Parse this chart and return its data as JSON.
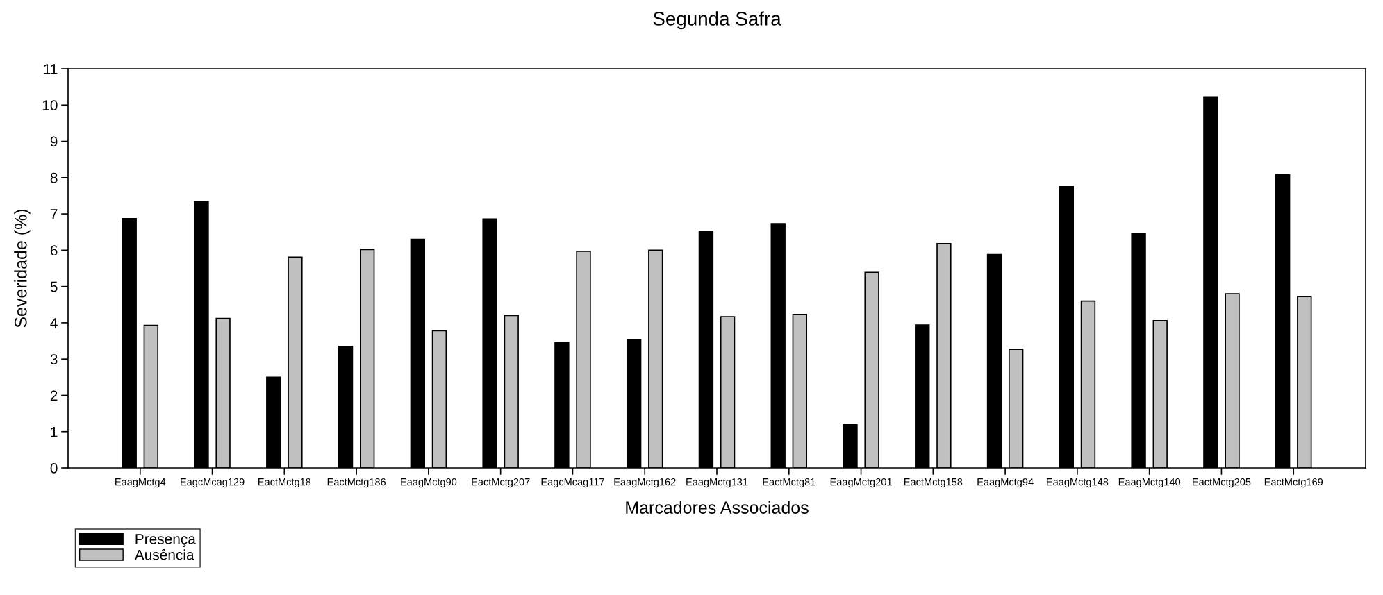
{
  "chart_data": {
    "type": "bar",
    "title": "Segunda Safra",
    "xlabel": "Marcadores Associados",
    "ylabel": "Severidade (%)",
    "categories": [
      "EaagMctg4",
      "EagcMcag129",
      "EactMctg18",
      "EactMctg186",
      "EaagMctg90",
      "EactMctg207",
      "EagcMcag117",
      "EaagMctg162",
      "EaagMctg131",
      "EactMctg81",
      "EaagMctg201",
      "EactMctg158",
      "EaagMctg94",
      "EaagMctg148",
      "EaagMctg140",
      "EactMctg205",
      "EactMctg169"
    ],
    "series": [
      {
        "name": "Presença",
        "color": "#000000",
        "values": [
          6.87,
          7.34,
          2.5,
          3.35,
          6.3,
          6.86,
          3.45,
          3.54,
          6.52,
          6.73,
          1.19,
          3.94,
          5.88,
          7.75,
          6.45,
          10.23,
          8.08
        ]
      },
      {
        "name": "Ausência",
        "color": "#c0c0c0",
        "values": [
          3.93,
          4.12,
          5.81,
          6.02,
          3.78,
          4.2,
          5.97,
          6.0,
          4.17,
          4.23,
          5.39,
          6.18,
          3.27,
          4.6,
          4.06,
          4.8,
          4.72
        ]
      }
    ],
    "ylim": [
      0,
      11
    ],
    "yticks": [
      0,
      1,
      2,
      3,
      4,
      5,
      6,
      7,
      8,
      9,
      10,
      11
    ],
    "grid": false,
    "legend": "bottom left"
  }
}
